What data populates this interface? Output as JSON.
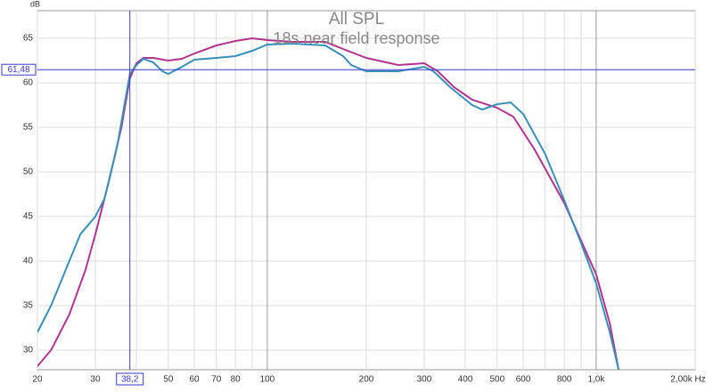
{
  "chart_data": {
    "type": "line",
    "title": "All SPL",
    "subtitle": "18s near field response",
    "y_label": "dB",
    "x_log": true,
    "grid": true,
    "xlim": [
      20,
      2000
    ],
    "ylim": [
      27.8,
      68.1
    ],
    "xticks": [
      20,
      30,
      50,
      60,
      70,
      80,
      100,
      200,
      300,
      400,
      500,
      600,
      800,
      {
        "value": 1000,
        "label": "1,0k"
      },
      {
        "value": 2000,
        "label": "2,00k Hz"
      }
    ],
    "xminor": [
      40,
      90,
      700,
      900
    ],
    "yticks": [
      30,
      35,
      40,
      45,
      50,
      55,
      60,
      65
    ],
    "cursor": {
      "x": {
        "value": 38.2,
        "label": "38,2"
      },
      "y": {
        "value": 61.48,
        "label": "61,48"
      },
      "color": "#3a3ad0"
    },
    "series": [
      {
        "color": "#b0348c",
        "x": [
          20,
          22,
          25,
          28,
          30,
          33,
          36,
          38.2,
          40,
          42,
          45,
          50,
          55,
          60,
          70,
          80,
          90,
          100,
          120,
          150,
          170,
          200,
          250,
          300,
          330,
          370,
          420,
          500,
          560,
          650,
          800,
          1000,
          1100,
          1170
        ],
        "values": [
          28.2,
          30,
          34,
          39,
          43,
          49,
          55,
          60.5,
          62.2,
          62.8,
          62.8,
          62.5,
          62.7,
          63.3,
          64.2,
          64.7,
          65.0,
          64.8,
          64.6,
          64.6,
          63.8,
          62.8,
          62.0,
          62.2,
          61.3,
          59.5,
          58.1,
          57.2,
          56.2,
          52.5,
          46.5,
          38.5,
          33,
          27.8
        ]
      },
      {
        "color": "#3a8fb7",
        "x": [
          20,
          22,
          25,
          27,
          30,
          32,
          35,
          38.2,
          40,
          42,
          45,
          48,
          50,
          55,
          60,
          70,
          80,
          90,
          100,
          120,
          150,
          170,
          180,
          200,
          250,
          300,
          320,
          360,
          420,
          450,
          500,
          550,
          600,
          700,
          800,
          900,
          1000,
          1100,
          1170
        ],
        "values": [
          32,
          35,
          40,
          43,
          45,
          47,
          53,
          61,
          62,
          62.7,
          62.3,
          61.3,
          61.0,
          61.8,
          62.6,
          62.8,
          63.0,
          63.6,
          64.3,
          64.4,
          64.2,
          63.0,
          62,
          61.3,
          61.3,
          61.8,
          61.3,
          59.5,
          57.5,
          57.0,
          57.6,
          57.8,
          56.5,
          52,
          46.8,
          42,
          37.5,
          32,
          27.8
        ]
      }
    ]
  }
}
